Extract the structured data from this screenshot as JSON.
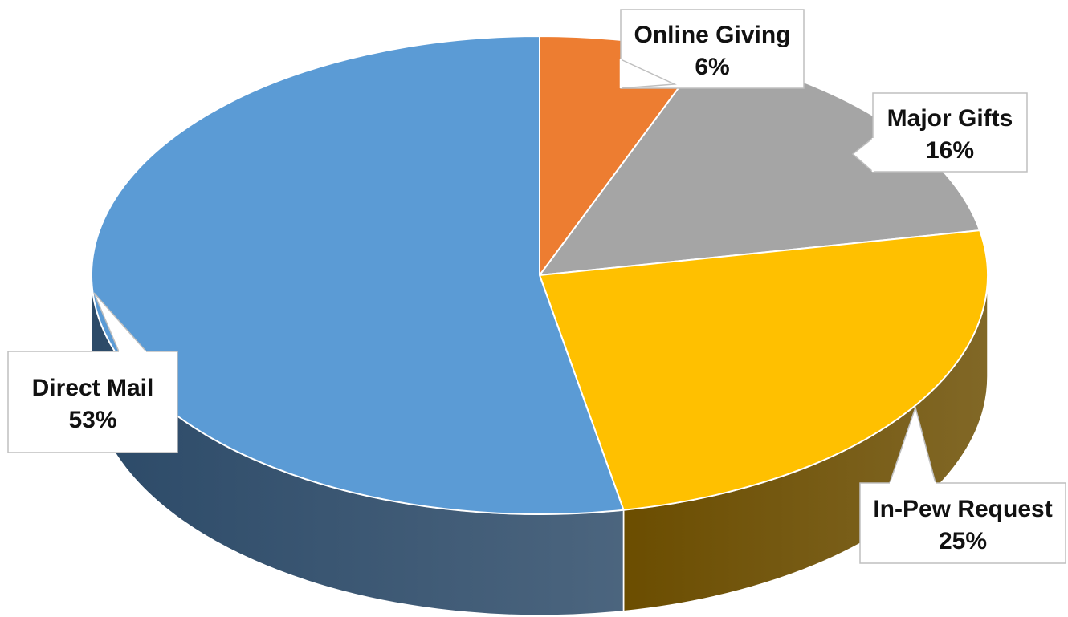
{
  "chart_data": {
    "type": "pie",
    "style": "3d",
    "title": "",
    "start_angle_deg": 0,
    "direction": "clockwise",
    "legend": "none",
    "slices": [
      {
        "label": "Online Giving",
        "percent_label": "6%",
        "value": 6,
        "color": "#ed7d31",
        "side_color": "#8a4a1d"
      },
      {
        "label": "Major Gifts",
        "percent_label": "16%",
        "value": 16,
        "color": "#a5a5a5",
        "side_color": "#5f5f5f"
      },
      {
        "label": "In-Pew Request",
        "percent_label": "25%",
        "value": 25,
        "color": "#ffc000",
        "side_color": "#6b4d00"
      },
      {
        "label": "Direct Mail",
        "percent_label": "53%",
        "value": 53,
        "color": "#5b9bd5",
        "side_color": "#2c4a68"
      }
    ]
  }
}
